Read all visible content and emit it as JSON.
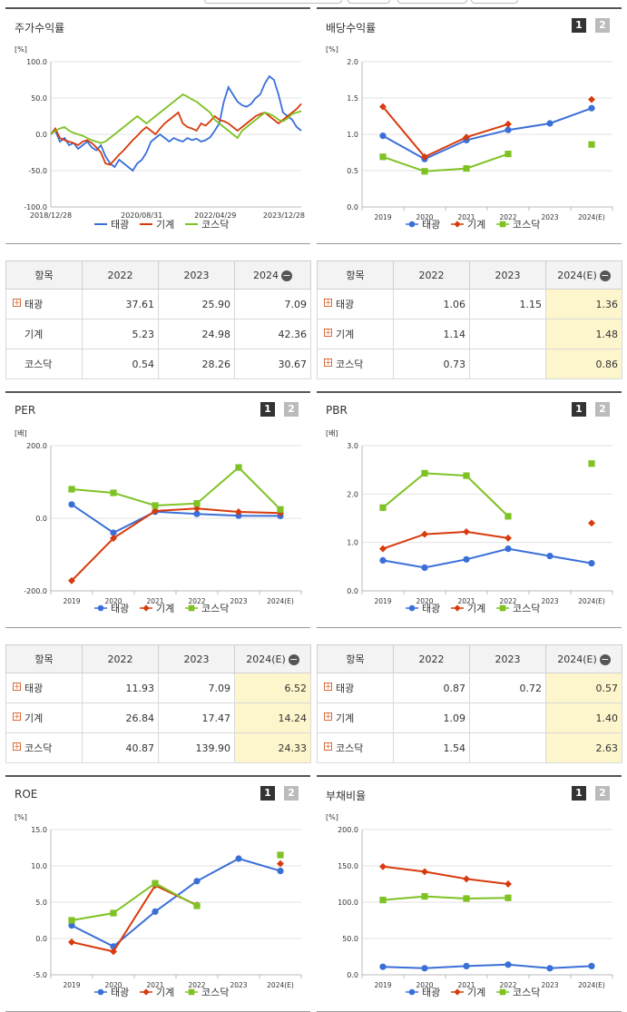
{
  "colors": {
    "s1": "#3a6fd8",
    "s2": "#d83a0c",
    "s3": "#7ec224"
  },
  "panels": {
    "stock": {
      "title": "주가수익률"
    },
    "div": {
      "title": "배당수익률",
      "btn1": "1",
      "btn2": "2"
    },
    "per": {
      "title": "PER",
      "btn1": "1",
      "btn2": "2"
    },
    "pbr": {
      "title": "PBR",
      "btn1": "1",
      "btn2": "2"
    },
    "roe": {
      "title": "ROE",
      "btn1": "1",
      "btn2": "2"
    },
    "debt": {
      "title": "부채비율",
      "btn1": "1",
      "btn2": "2"
    }
  },
  "legend": [
    "태광",
    "기계",
    "코스닥"
  ],
  "tables": {
    "stock": {
      "head": [
        "항목",
        "2022",
        "2023",
        "2024"
      ],
      "rows": [
        [
          "태광",
          "37.61",
          "25.90",
          "7.09"
        ],
        [
          "기계",
          "5.23",
          "24.98",
          "42.36"
        ],
        [
          "코스닥",
          "0.54",
          "28.26",
          "30.67"
        ]
      ]
    },
    "div": {
      "head": [
        "항목",
        "2022",
        "2023",
        "2024(E)"
      ],
      "rows": [
        [
          "태광",
          "1.06",
          "1.15",
          "1.36"
        ],
        [
          "기계",
          "1.14",
          "",
          "1.48"
        ],
        [
          "코스닥",
          "0.73",
          "",
          "0.86"
        ]
      ]
    },
    "per": {
      "head": [
        "항목",
        "2022",
        "2023",
        "2024(E)"
      ],
      "rows": [
        [
          "태광",
          "11.93",
          "7.09",
          "6.52"
        ],
        [
          "기계",
          "26.84",
          "17.47",
          "14.24"
        ],
        [
          "코스닥",
          "40.87",
          "139.90",
          "24.33"
        ]
      ]
    },
    "pbr": {
      "head": [
        "항목",
        "2022",
        "2023",
        "2024(E)"
      ],
      "rows": [
        [
          "태광",
          "0.87",
          "0.72",
          "0.57"
        ],
        [
          "기계",
          "1.09",
          "",
          "1.40"
        ],
        [
          "코스닥",
          "1.54",
          "",
          "2.63"
        ]
      ]
    }
  },
  "chart_data": [
    {
      "id": "stock",
      "type": "line",
      "unit": "[%]",
      "ylim": [
        -100,
        100
      ],
      "yticks": [
        "100.0",
        "50.0",
        "0.0",
        "-50.0",
        "-100.0"
      ],
      "xticks": [
        "2018/12/28",
        "2020/08/31",
        "2022/04/29",
        "2023/12/28"
      ],
      "series": [
        {
          "name": "태광",
          "values": [
            0,
            5,
            -10,
            -5,
            -15,
            -12,
            -20,
            -15,
            -10,
            -18,
            -22,
            -15,
            -30,
            -40,
            -45,
            -35,
            -40,
            -45,
            -50,
            -40,
            -35,
            -25,
            -10,
            -5,
            0,
            -5,
            -10,
            -5,
            -8,
            -10,
            -5,
            -8,
            -6,
            -10,
            -8,
            -4,
            5,
            15,
            45,
            65,
            55,
            45,
            40,
            38,
            42,
            50,
            55,
            70,
            80,
            75,
            55,
            30,
            25,
            20,
            10,
            5
          ]
        },
        {
          "name": "기계",
          "values": [
            0,
            8,
            -5,
            -8,
            -10,
            -12,
            -15,
            -10,
            -8,
            -12,
            -18,
            -25,
            -40,
            -42,
            -35,
            -28,
            -22,
            -15,
            -8,
            -2,
            5,
            10,
            5,
            0,
            8,
            15,
            20,
            25,
            30,
            15,
            10,
            8,
            5,
            15,
            12,
            18,
            25,
            20,
            18,
            15,
            10,
            5,
            10,
            15,
            20,
            25,
            28,
            30,
            25,
            20,
            15,
            20,
            25,
            30,
            35,
            42
          ]
        },
        {
          "name": "코스닥",
          "values": [
            0,
            5,
            8,
            10,
            5,
            2,
            0,
            -2,
            -5,
            -8,
            -10,
            -12,
            -10,
            -5,
            0,
            5,
            10,
            15,
            20,
            25,
            20,
            15,
            20,
            25,
            30,
            35,
            40,
            45,
            50,
            55,
            52,
            48,
            45,
            40,
            35,
            30,
            20,
            15,
            10,
            5,
            0,
            -5,
            5,
            10,
            15,
            20,
            25,
            30,
            28,
            25,
            20,
            18,
            22,
            28,
            30,
            32
          ]
        }
      ]
    },
    {
      "id": "div",
      "type": "line",
      "unit": "[%]",
      "ylim": [
        0,
        2
      ],
      "yticks": [
        "2.0",
        "1.5",
        "1.0",
        "0.5",
        "0.0"
      ],
      "xticks": [
        "2019",
        "2020",
        "2021",
        "2022",
        "2023",
        "2024(E)"
      ],
      "series": [
        {
          "name": "태광",
          "values": [
            0.98,
            0.66,
            0.92,
            1.06,
            1.15,
            1.36
          ]
        },
        {
          "name": "기계",
          "values": [
            1.38,
            0.69,
            0.96,
            1.14,
            null,
            1.48
          ]
        },
        {
          "name": "코스닥",
          "values": [
            0.69,
            0.49,
            0.53,
            0.73,
            null,
            0.86
          ]
        }
      ]
    },
    {
      "id": "per",
      "type": "line",
      "unit": "[배]",
      "ylim": [
        -200,
        200
      ],
      "yticks": [
        "200.0",
        "0.0",
        "-200.0"
      ],
      "xticks": [
        "2019",
        "2020",
        "2021",
        "2022",
        "2023",
        "2024(E)"
      ],
      "series": [
        {
          "name": "태광",
          "values": [
            38,
            -40,
            18,
            11.93,
            7.09,
            6.52
          ]
        },
        {
          "name": "기계",
          "values": [
            -172,
            -55,
            20,
            26.84,
            17.47,
            14.24
          ]
        },
        {
          "name": "코스닥",
          "values": [
            80,
            70,
            35,
            40.87,
            139.9,
            24.33
          ]
        }
      ]
    },
    {
      "id": "pbr",
      "type": "line",
      "unit": "[배]",
      "ylim": [
        0,
        3
      ],
      "yticks": [
        "3.0",
        "2.0",
        "1.0",
        "0.0"
      ],
      "xticks": [
        "2019",
        "2020",
        "2021",
        "2022",
        "2023",
        "2024(E)"
      ],
      "series": [
        {
          "name": "태광",
          "values": [
            0.63,
            0.48,
            0.65,
            0.87,
            0.72,
            0.57
          ]
        },
        {
          "name": "기계",
          "values": [
            0.87,
            1.17,
            1.22,
            1.09,
            null,
            1.4
          ]
        },
        {
          "name": "코스닥",
          "values": [
            1.72,
            2.43,
            2.38,
            1.54,
            null,
            2.63
          ]
        }
      ]
    },
    {
      "id": "roe",
      "type": "line",
      "unit": "[%]",
      "ylim": [
        -5,
        15
      ],
      "yticks": [
        "15.0",
        "10.0",
        "5.0",
        "0.0",
        "-5.0"
      ],
      "xticks": [
        "2019",
        "2020",
        "2021",
        "2022",
        "2023",
        "2024(E)"
      ],
      "series": [
        {
          "name": "태광",
          "values": [
            1.8,
            -1.1,
            3.7,
            7.9,
            11.0,
            9.3
          ]
        },
        {
          "name": "기계",
          "values": [
            -0.5,
            -1.8,
            7.3,
            4.6,
            null,
            10.3
          ]
        },
        {
          "name": "코스닥",
          "values": [
            2.5,
            3.5,
            7.6,
            4.5,
            null,
            11.5
          ]
        }
      ]
    },
    {
      "id": "debt",
      "type": "line",
      "unit": "[%]",
      "ylim": [
        0,
        200
      ],
      "yticks": [
        "200.0",
        "150.0",
        "100.0",
        "50.0",
        "0.0"
      ],
      "xticks": [
        "2019",
        "2020",
        "2021",
        "2022",
        "2023",
        "2024(E)"
      ],
      "series": [
        {
          "name": "태광",
          "values": [
            11,
            9,
            12,
            14,
            9,
            12
          ]
        },
        {
          "name": "기계",
          "values": [
            149,
            142,
            132,
            125,
            null,
            null
          ]
        },
        {
          "name": "코스닥",
          "values": [
            103,
            108,
            105,
            106,
            null,
            null
          ]
        }
      ]
    }
  ]
}
